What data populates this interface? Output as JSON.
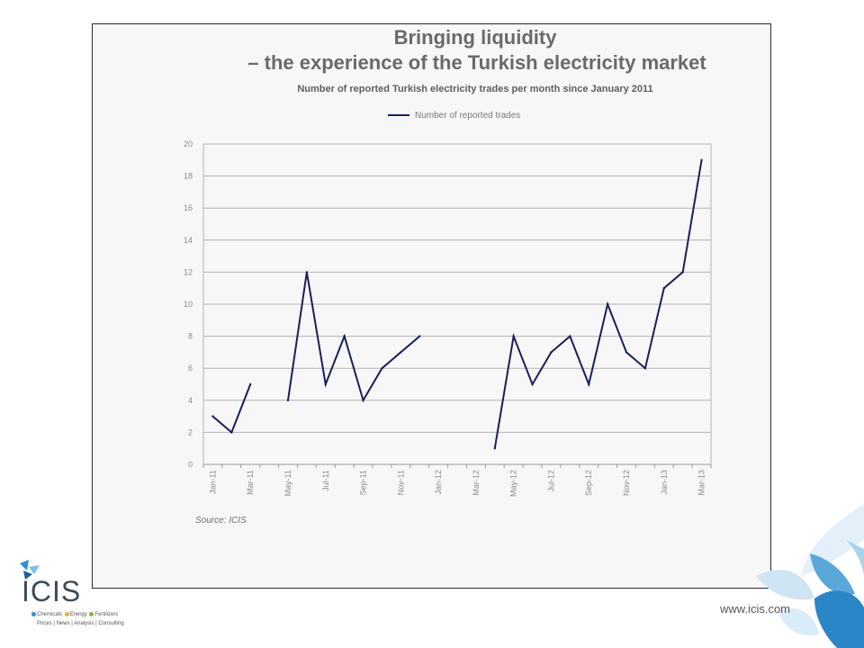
{
  "slide": {
    "footer_url": "www.icis.com",
    "logo": {
      "wordmark": "ICIS",
      "categories": [
        "Chemicals",
        "Energy",
        "Fertilizers"
      ],
      "tagline": "Prices | News | Analysis | Consulting"
    },
    "colors": {
      "brand_blue": "#2f8fd0",
      "brand_green": "#7ab648",
      "brand_yellow": "#f0b323",
      "line": "#1a1f5a"
    }
  },
  "chart_data": {
    "type": "line",
    "title_line1": "Bringing liquidity",
    "title_line2": "– the experience of the Turkish electricity market",
    "subtitle": "Number of reported Turkish electricity trades per month since January 2011",
    "source": "Source: ICIS",
    "legend_position": "top-center",
    "grid": true,
    "ylim": [
      0,
      20
    ],
    "yticks": [
      0,
      2,
      4,
      6,
      8,
      10,
      12,
      14,
      16,
      18,
      20
    ],
    "x_tick_labels": [
      "Jan-11",
      "Mar-11",
      "May-11",
      "Jul-11",
      "Sep-11",
      "Nov-11",
      "Jan-12",
      "Mar-12",
      "May-12",
      "Jul-12",
      "Sep-12",
      "Nov-12",
      "Jan-13",
      "Mar-13"
    ],
    "categories": [
      "Jan-11",
      "Feb-11",
      "Mar-11",
      "Apr-11",
      "May-11",
      "Jun-11",
      "Jul-11",
      "Aug-11",
      "Sep-11",
      "Oct-11",
      "Nov-11",
      "Dec-11",
      "Jan-12",
      "Feb-12",
      "Mar-12",
      "Apr-12",
      "May-12",
      "Jun-12",
      "Jul-12",
      "Aug-12",
      "Sep-12",
      "Oct-12",
      "Nov-12",
      "Dec-12",
      "Jan-13",
      "Feb-13",
      "Mar-13"
    ],
    "series": [
      {
        "name": "Number of reported trades",
        "values": [
          3,
          2,
          5,
          null,
          4,
          12,
          5,
          8,
          4,
          6,
          7,
          8,
          null,
          null,
          null,
          1,
          8,
          5,
          7,
          8,
          5,
          10,
          7,
          6,
          11,
          12,
          19
        ]
      }
    ]
  }
}
